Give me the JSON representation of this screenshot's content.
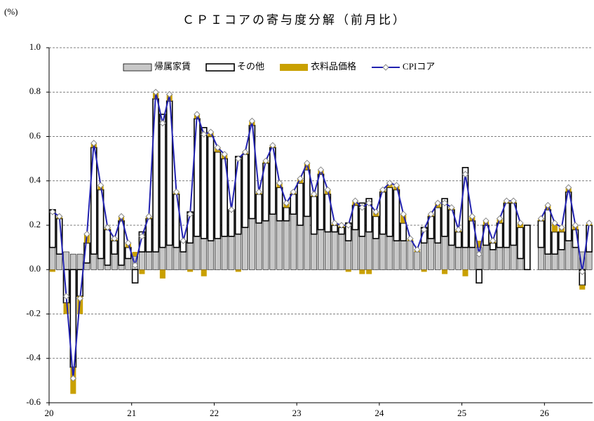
{
  "chart_data": {
    "type": "stacked_bar_line",
    "title": "ＣＰＩコアの寄与度分解（前月比）",
    "y_unit": "(%)",
    "categories": [
      "20",
      null,
      null,
      null,
      null,
      null,
      null,
      null,
      null,
      null,
      null,
      null,
      "21",
      null,
      null,
      null,
      null,
      null,
      null,
      null,
      null,
      null,
      null,
      null,
      "22",
      null,
      null,
      null,
      null,
      null,
      null,
      null,
      null,
      null,
      null,
      null,
      "23",
      null,
      null,
      null,
      null,
      null,
      null,
      null,
      null,
      null,
      null,
      null,
      "24",
      null,
      null,
      null,
      null,
      null,
      null,
      null,
      null,
      null,
      null,
      null,
      "25",
      null,
      null,
      null,
      null,
      null,
      null,
      null,
      null,
      null,
      null,
      null,
      "26",
      null,
      null,
      null,
      null,
      null,
      null
    ],
    "series": [
      {
        "name": "帰属家賃",
        "kind": "bar",
        "color": "#c8c8c8",
        "values": [
          0.1,
          0.07,
          0.08,
          0.07,
          0.07,
          0.03,
          0.07,
          0.05,
          0.02,
          0.07,
          0.02,
          0.05,
          0.06,
          0.08,
          0.08,
          0.08,
          0.1,
          0.11,
          0.1,
          0.08,
          0.12,
          0.15,
          0.14,
          0.13,
          0.14,
          0.15,
          0.15,
          0.16,
          0.19,
          0.23,
          0.21,
          0.22,
          0.25,
          0.22,
          0.22,
          0.25,
          0.2,
          0.24,
          0.16,
          0.18,
          0.17,
          0.17,
          0.16,
          0.13,
          0.18,
          0.15,
          0.17,
          0.14,
          0.16,
          0.15,
          0.13,
          0.13,
          0.13,
          0.08,
          0.12,
          0.14,
          0.12,
          0.15,
          0.11,
          0.1,
          0.1,
          0.1,
          0.1,
          0.11,
          0.09,
          0.1,
          0.1,
          0.11,
          0.05,
          0,
          null,
          0.1,
          0.07,
          0.07,
          0.09,
          0.13,
          0.1,
          0.08,
          0.08
        ]
      },
      {
        "name": "その他",
        "kind": "bar",
        "color": "#ffffff",
        "values": [
          0.17,
          0.16,
          -0.15,
          -0.44,
          -0.12,
          0.09,
          0.48,
          0.31,
          0.16,
          0.06,
          0.2,
          0.05,
          -0.06,
          0.09,
          0.15,
          0.69,
          0.6,
          0.65,
          0.24,
          0.05,
          0.14,
          0.53,
          0.5,
          0.47,
          0.39,
          0.35,
          0.12,
          0.35,
          0.33,
          0.42,
          0.13,
          0.26,
          0.3,
          0.15,
          0.06,
          0.09,
          0.19,
          0.21,
          0.17,
          0.25,
          0.17,
          0.03,
          0.03,
          0.08,
          0.11,
          0.15,
          0.15,
          0.1,
          0.19,
          0.22,
          0.23,
          0.08,
          0.0,
          0.0,
          0.07,
          0.1,
          0.16,
          0.17,
          0.16,
          0.07,
          0.36,
          0.12,
          -0.06,
          0.09,
          0.03,
          0.11,
          0.2,
          0.19,
          0.14,
          0.2,
          null,
          0.12,
          0.2,
          0.1,
          0.08,
          0.22,
          0.08,
          -0.07,
          0.12
        ]
      },
      {
        "name": "衣料品価格",
        "kind": "bar",
        "color": "#c9a000",
        "values": [
          -0.01,
          0.01,
          -0.05,
          -0.12,
          -0.08,
          0.04,
          0.02,
          0.02,
          0.01,
          0.01,
          0.02,
          0.02,
          0.02,
          -0.02,
          0.01,
          0.03,
          -0.04,
          0.03,
          0.01,
          0.0,
          -0.01,
          0.02,
          -0.03,
          0.02,
          0.02,
          0.02,
          0.0,
          -0.01,
          0.01,
          0.02,
          0.01,
          0.01,
          0.01,
          0.02,
          0.02,
          0.01,
          0.02,
          0.03,
          0.01,
          0.02,
          0.02,
          0.01,
          0.01,
          -0.01,
          0.02,
          -0.02,
          -0.02,
          0.02,
          0.01,
          0.02,
          0.02,
          0.04,
          0.01,
          0.01,
          -0.01,
          0.01,
          0.02,
          -0.02,
          0.01,
          0.01,
          -0.03,
          0.02,
          0.03,
          0.02,
          0.01,
          0.02,
          0.01,
          0.01,
          0.02,
          0,
          null,
          0.01,
          0.02,
          0.04,
          0.02,
          0.02,
          0.02,
          -0.02,
          0.01
        ]
      },
      {
        "name": "CPIコア",
        "kind": "line",
        "color": "#2222b0",
        "values": [
          0.26,
          0.24,
          -0.12,
          -0.49,
          -0.13,
          0.16,
          0.57,
          0.38,
          0.19,
          0.14,
          0.24,
          0.12,
          0.02,
          0.15,
          0.24,
          0.8,
          0.66,
          0.79,
          0.35,
          0.13,
          0.25,
          0.7,
          0.61,
          0.62,
          0.55,
          0.52,
          0.27,
          0.5,
          0.53,
          0.67,
          0.35,
          0.49,
          0.56,
          0.39,
          0.3,
          0.35,
          0.41,
          0.48,
          0.34,
          0.45,
          0.36,
          0.21,
          0.2,
          0.2,
          0.31,
          0.28,
          0.3,
          0.26,
          0.36,
          0.39,
          0.38,
          0.25,
          0.14,
          0.09,
          0.18,
          0.25,
          0.3,
          0.3,
          0.28,
          0.18,
          0.43,
          0.24,
          0.07,
          0.22,
          0.13,
          0.23,
          0.31,
          0.31,
          0.21,
          null,
          null,
          0.23,
          0.29,
          0.21,
          0.19,
          0.37,
          0.2,
          -0.01,
          0.21
        ]
      }
    ],
    "ylim": [
      -0.6,
      1.0
    ],
    "yticks": [
      {
        "value": 1.0,
        "label": "1.0"
      },
      0.8,
      0.6,
      0.4,
      0.2,
      {
        "value": 0.0,
        "label": "0.0"
      },
      -0.2,
      -0.4,
      -0.6
    ],
    "grid": true,
    "legend": "top"
  }
}
